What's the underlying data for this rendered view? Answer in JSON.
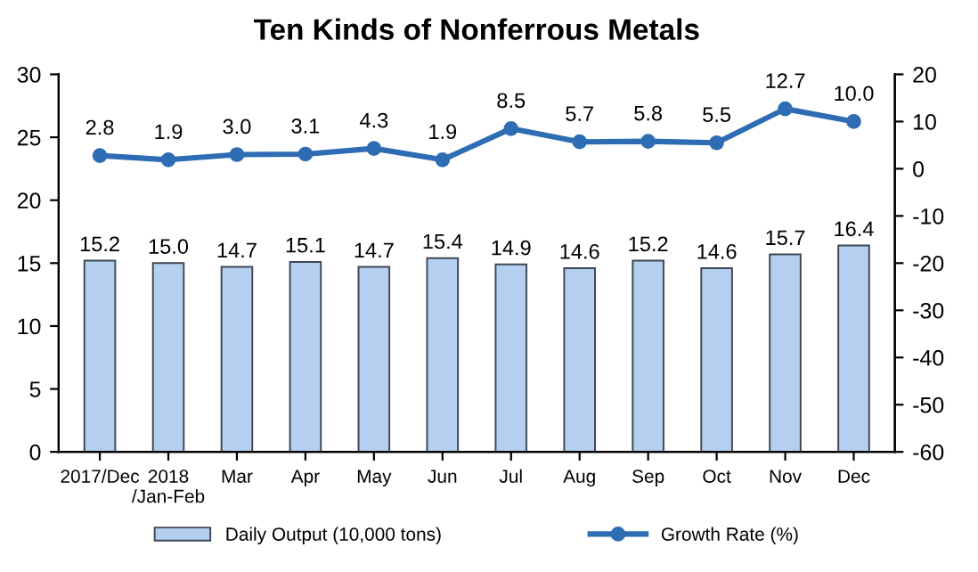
{
  "chart_data": {
    "type": "bar",
    "title": "Ten Kinds of Nonferrous Metals",
    "categories": [
      "2017/Dec",
      "2018\n/Jan-Feb",
      "Mar",
      "Apr",
      "May",
      "Jun",
      "Jul",
      "Aug",
      "Sep",
      "Oct",
      "Nov",
      "Dec"
    ],
    "series": [
      {
        "name": "Daily Output (10,000 tons)",
        "color": "#b4cff0",
        "values": [
          15.2,
          15.0,
          14.7,
          15.1,
          14.7,
          15.4,
          14.9,
          14.6,
          15.2,
          14.6,
          15.7,
          16.4
        ],
        "value_labels": [
          "15.2",
          "15.0",
          "14.7",
          "15.1",
          "14.7",
          "15.4",
          "14.9",
          "14.6",
          "15.2",
          "14.6",
          "15.7",
          "16.4"
        ]
      },
      {
        "name": "Growth Rate (%)",
        "type": "line",
        "axis": "y2",
        "color": "#2e6db4",
        "marker": "circle",
        "values": [
          2.8,
          1.9,
          3.0,
          3.1,
          4.3,
          1.9,
          8.5,
          5.7,
          5.8,
          5.5,
          12.7,
          10.0
        ],
        "value_labels": [
          "2.8",
          "1.9",
          "3.0",
          "3.1",
          "4.3",
          "1.9",
          "8.5",
          "5.7",
          "5.8",
          "5.5",
          "12.7",
          "10.0"
        ]
      }
    ],
    "ylim": [
      0,
      30
    ],
    "yticks": [
      0,
      5,
      10,
      15,
      20,
      25,
      30
    ],
    "y2lim": [
      -60,
      20
    ],
    "y2ticks": [
      -60,
      -50,
      -40,
      -30,
      -20,
      -10,
      0,
      10,
      20
    ],
    "legend": "bottom",
    "grid": false
  }
}
